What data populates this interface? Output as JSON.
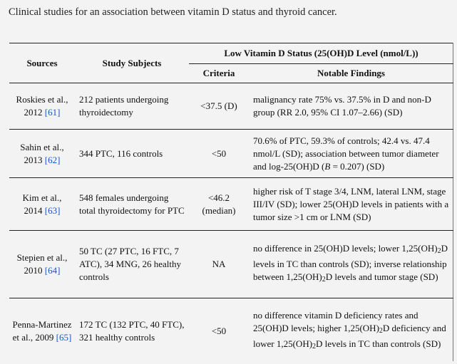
{
  "caption": "Clinical studies for an association between vitamin D status and thyroid cancer.",
  "headers": {
    "sources": "Sources",
    "subjects": "Study Subjects",
    "group": "Low Vitamin D Status (25(OH)D Level (nmol/L))",
    "criteria": "Criteria",
    "findings": "Notable Findings"
  },
  "rows": [
    {
      "source": "Roskies et al., 2012",
      "ref": "[61]",
      "subjects": "212 patients undergoing thyroidectomy",
      "criteria": "<37.5 (D)",
      "findings_a": "malignancy rate 75% vs. 37.5% in D and non-D group (RR 2.0, 95% CI 1.07–2.66) (SD)"
    },
    {
      "source": "Sahin et al., 2013",
      "ref": "[62]",
      "subjects": "344 PTC, 116 controls",
      "criteria": "<50",
      "findings_a": "70.6% of PTC, 59.3% of controls; 42.4 vs. 47.4 nmol/L (SD); association between tumor diameter and log-25(OH)D (",
      "findings_b": "B",
      "findings_c": " = 0.207) (SD)"
    },
    {
      "source": "Kim et al., 2014",
      "ref": "[63]",
      "subjects": "548 females undergoing total thyroidectomy for PTC",
      "criteria": "<46.2 (median)",
      "findings_a": "higher risk of T stage 3/4, LNM, lateral LNM, stage III/IV (SD); lower 25(OH)D levels in patients with a tumor size >1 cm or LNM (SD)"
    },
    {
      "source": "Stepien et al., 2010",
      "ref": "[64]",
      "subjects": "50 TC (27 PTC, 16 FTC, 7 ATC), 34 MNG, 26 healthy controls",
      "criteria": "NA",
      "findings_a": "no difference in 25(OH)D levels; lower 1,25(OH)",
      "findings_sub1": "2",
      "findings_b": "D levels in TC than controls (SD); inverse relationship between 1,25(OH)",
      "findings_sub2": "2",
      "findings_c": "D levels and tumor stage (SD)"
    },
    {
      "source": "Penna-Martinez et al., 2009",
      "ref": "[65]",
      "subjects": "172 TC (132 PTC, 40 FTC), 321 healthy controls",
      "criteria": "<50",
      "findings_a": "no difference vitamin D deficiency rates and 25(OH)D levels; higher 1,25(OH)",
      "findings_sub1": "2",
      "findings_b": "D deficiency and lower 1,25(OH)",
      "findings_sub2": "2",
      "findings_c": "D levels in TC than controls (SD)"
    }
  ]
}
